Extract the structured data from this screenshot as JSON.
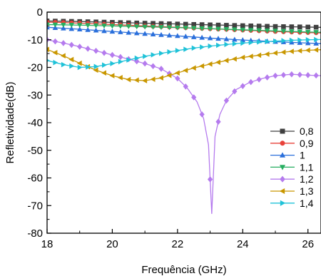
{
  "chart_data": {
    "type": "line",
    "title": "",
    "xlabel": "Frequência (GHz)",
    "ylabel": "Refletividade(dB)",
    "xlim": [
      18,
      26.4
    ],
    "ylim": [
      -80,
      0
    ],
    "x_ticks": [
      18,
      20,
      22,
      24,
      26
    ],
    "y_ticks": [
      0,
      -10,
      -20,
      -30,
      -40,
      -50,
      -60,
      -70,
      -80
    ],
    "grid": false,
    "legend_position": "right",
    "series": [
      {
        "name": "0,8",
        "color": "#404040",
        "marker": "square",
        "x": [
          18,
          19,
          20,
          21,
          22,
          23,
          24,
          25,
          26,
          26.4
        ],
        "y": [
          -3.2,
          -3.4,
          -3.7,
          -4.0,
          -4.3,
          -4.6,
          -4.9,
          -5.2,
          -5.4,
          -5.5
        ]
      },
      {
        "name": "0,9",
        "color": "#e8413a",
        "marker": "circle",
        "x": [
          18,
          19,
          20,
          21,
          22,
          23,
          24,
          25,
          26,
          26.4
        ],
        "y": [
          -3.6,
          -4.0,
          -4.5,
          -5.0,
          -5.5,
          -6.0,
          -6.5,
          -7.0,
          -7.4,
          -7.5
        ]
      },
      {
        "name": "1",
        "color": "#2a6fdb",
        "marker": "triangle-up",
        "x": [
          18,
          19,
          20,
          21,
          22,
          23,
          24,
          25,
          26,
          26.4
        ],
        "y": [
          -5.5,
          -6.2,
          -7.0,
          -7.8,
          -8.6,
          -9.4,
          -10.1,
          -10.7,
          -11.2,
          -11.4
        ]
      },
      {
        "name": "1,1",
        "color": "#27ae60",
        "marker": "triangle-down",
        "x": [
          18,
          19,
          20,
          21,
          22,
          23,
          24,
          25,
          26,
          26.4
        ],
        "y": [
          -4.5,
          -4.7,
          -5.0,
          -5.3,
          -5.6,
          -6.0,
          -6.4,
          -6.8,
          -7.2,
          -7.3
        ]
      },
      {
        "name": "1,2",
        "color": "#b57bee",
        "marker": "diamond",
        "x": [
          18,
          18.5,
          19,
          19.5,
          20,
          20.5,
          21,
          21.5,
          22,
          22.3,
          22.6,
          22.8,
          22.95,
          23.05,
          23.15,
          23.3,
          23.5,
          23.8,
          24.2,
          24.6,
          25,
          25.5,
          26,
          26.4
        ],
        "y": [
          -10,
          -11.2,
          -12.5,
          -14,
          -15.5,
          -17,
          -18.6,
          -20.5,
          -24,
          -27.5,
          -32.5,
          -38.5,
          -48,
          -73,
          -45,
          -37,
          -32,
          -28,
          -25.5,
          -24,
          -23,
          -22.5,
          -22.8,
          -23
        ]
      },
      {
        "name": "1,3",
        "color": "#c99700",
        "marker": "triangle-left",
        "x": [
          18,
          18.5,
          19,
          19.5,
          20,
          20.5,
          21,
          21.5,
          22,
          22.5,
          23,
          23.5,
          24,
          24.5,
          25,
          25.5,
          26,
          26.4
        ],
        "y": [
          -13.5,
          -15.8,
          -18.5,
          -21,
          -23,
          -24.4,
          -24.8,
          -23.8,
          -22,
          -20.2,
          -18.8,
          -17.5,
          -16.4,
          -15.6,
          -14.8,
          -14.2,
          -13.8,
          -13.6
        ]
      },
      {
        "name": "1,4",
        "color": "#1fc2d8",
        "marker": "triangle-right",
        "x": [
          18,
          18.5,
          19,
          19.5,
          20,
          20.5,
          21,
          21.5,
          22,
          22.5,
          23,
          23.5,
          24,
          24.5,
          25,
          25.5,
          26,
          26.4
        ],
        "y": [
          -17.5,
          -19,
          -20,
          -19.7,
          -18.6,
          -17.3,
          -16,
          -14.9,
          -13.9,
          -13,
          -12.3,
          -11.7,
          -11.2,
          -10.8,
          -10.5,
          -10.2,
          -10,
          -9.9
        ]
      }
    ]
  }
}
